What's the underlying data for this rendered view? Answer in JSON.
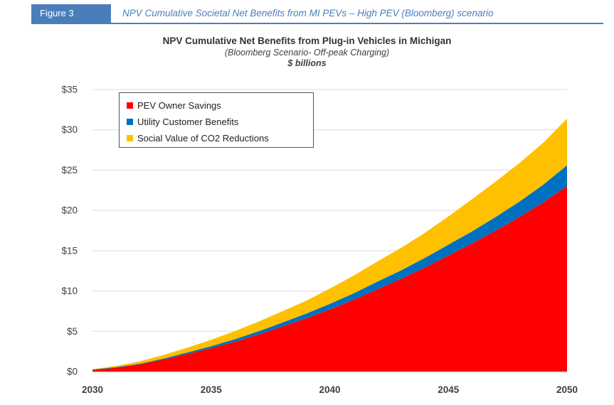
{
  "figure": {
    "tag": "Figure 3",
    "caption": "NPV Cumulative Societal Net Benefits from MI PEVs – High PEV (Bloomberg) scenario"
  },
  "chart_data": {
    "type": "area",
    "stacked": true,
    "title": "NPV Cumulative Net Benefits from Plug-in Vehicles in Michigan",
    "subtitle": "(Bloomberg Scenario- Off-peak Charging)",
    "unit": "$ billions",
    "x": [
      2030,
      2031,
      2032,
      2033,
      2034,
      2035,
      2036,
      2037,
      2038,
      2039,
      2040,
      2041,
      2042,
      2043,
      2044,
      2045,
      2046,
      2047,
      2048,
      2049,
      2050
    ],
    "x_ticks": [
      "2030",
      "2035",
      "2040",
      "2045",
      "2050"
    ],
    "y_ticks": [
      "$0",
      "$5",
      "$10",
      "$15",
      "$20",
      "$25",
      "$30",
      "$35"
    ],
    "ylim": [
      0,
      35
    ],
    "grid": true,
    "legend_position": "top-left",
    "series": [
      {
        "name": "PEV Owner Savings",
        "color": "#ff0000",
        "values": [
          0.2,
          0.5,
          0.9,
          1.5,
          2.2,
          2.9,
          3.7,
          4.6,
          5.6,
          6.6,
          7.7,
          8.9,
          10.2,
          11.5,
          12.9,
          14.4,
          15.9,
          17.5,
          19.2,
          21.0,
          23.0
        ]
      },
      {
        "name": "Utility Customer Benefits",
        "color": "#0070c0",
        "values": [
          0.05,
          0.06,
          0.08,
          0.12,
          0.18,
          0.25,
          0.32,
          0.4,
          0.48,
          0.58,
          0.7,
          0.8,
          0.95,
          1.05,
          1.2,
          1.35,
          1.5,
          1.7,
          1.9,
          2.2,
          2.6
        ]
      },
      {
        "name": "Social Value of CO2 Reductions",
        "color": "#ffc000",
        "values": [
          0.05,
          0.15,
          0.3,
          0.45,
          0.6,
          0.8,
          1.0,
          1.2,
          1.4,
          1.6,
          1.9,
          2.2,
          2.5,
          2.8,
          3.1,
          3.5,
          4.0,
          4.4,
          4.8,
          5.2,
          5.8
        ]
      }
    ]
  }
}
